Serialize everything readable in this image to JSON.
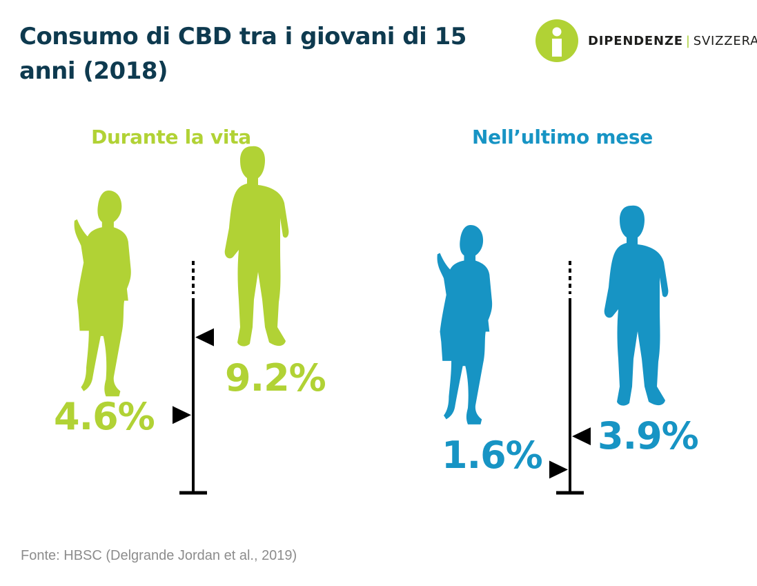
{
  "title": "Consumo di CBD tra i giovani di 15 anni (2018)",
  "logo": {
    "word1": "DIPENDENZE",
    "separator": "|",
    "word2": "SVIZZERA"
  },
  "source": "Fonte: HBSC (Delgrande Jordan et al., 2019)",
  "colors": {
    "lifetime": "#b1d235",
    "month": "#1794c4",
    "title": "#0e3a4f",
    "axis": "#000000"
  },
  "chart_data": [
    {
      "type": "bar",
      "title": "Durante la vita",
      "categories": [
        "girls",
        "boys"
      ],
      "values": [
        4.6,
        9.2
      ],
      "labels": [
        "4.6%",
        "9.2%"
      ],
      "color": "#b1d235"
    },
    {
      "type": "bar",
      "title": "Nell’ultimo mese",
      "categories": [
        "girls",
        "boys"
      ],
      "values": [
        1.6,
        3.9
      ],
      "labels": [
        "1.6%",
        "3.9%"
      ],
      "color": "#1794c4"
    }
  ]
}
